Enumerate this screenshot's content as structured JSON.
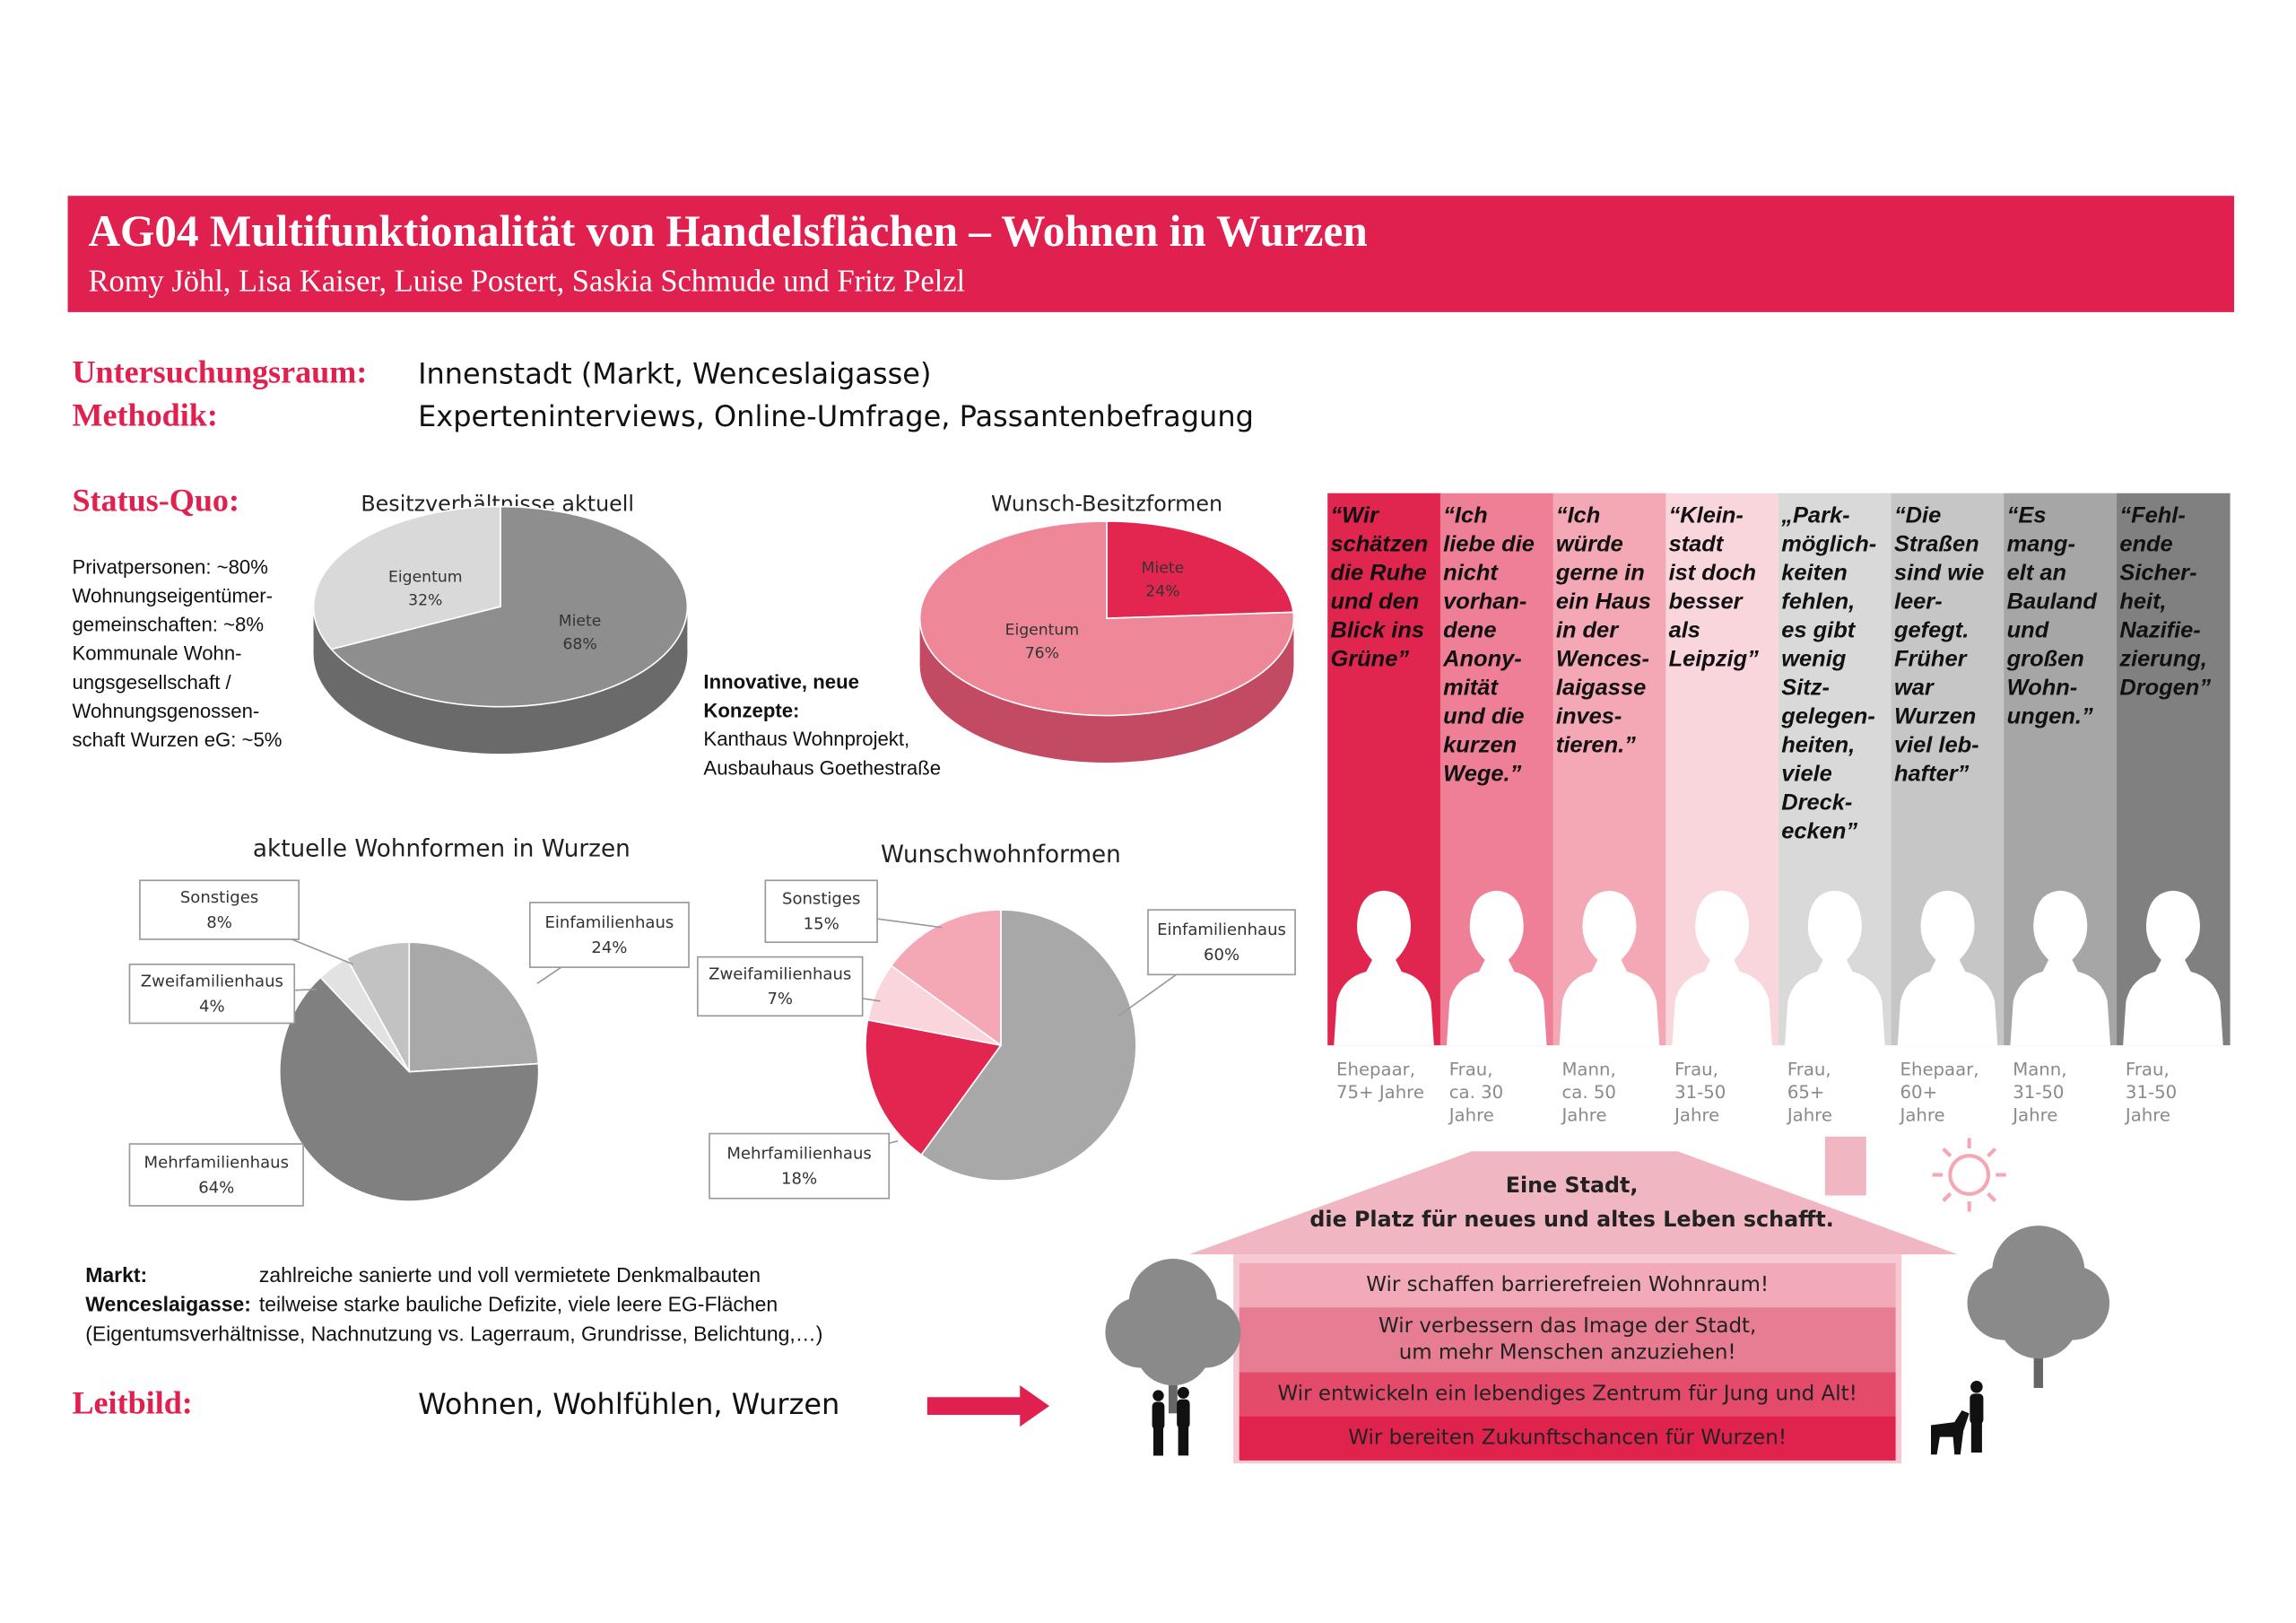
{
  "header": {
    "title": "AG04 Multifunktionalität von Handelsflächen – Wohnen in Wurzen",
    "authors": "Romy Jöhl, Lisa Kaiser, Luise Postert, Saskia Schmude und Fritz Pelzl"
  },
  "info": [
    {
      "label": "Untersuchungsraum:",
      "text": "Innenstadt (Markt, Wenceslaigasse)"
    },
    {
      "label": "Methodik:",
      "text": "Experteninterviews, Online-Umfrage, Passantenbefragung"
    }
  ],
  "status_quo": {
    "label": "Status-Quo:",
    "notes": [
      "Privatpersonen: ~80%",
      "Wohnungseigentümer-",
      "gemeinschaften: ~8%",
      "Kommunale Wohn-",
      "ungsgesellschaft /",
      "Wohnungsgenossen-",
      "schaft Wurzen eG: ~5%"
    ]
  },
  "innovative": {
    "title": [
      "Innovative, neue",
      "Konzepte:"
    ],
    "lines": [
      "Kanthaus Wohnprojekt,",
      "Ausbauhaus Goethestraße"
    ]
  },
  "charts": [
    {
      "type": "pie",
      "title": "Besitzverhältnisse aktuell",
      "categories": [
        "Miete",
        "Eigentum"
      ],
      "values": [
        68,
        32
      ],
      "value_labels": [
        "68%",
        "32%"
      ],
      "colors": [
        "#8e8e8e",
        "#d9d9d9"
      ]
    },
    {
      "type": "pie",
      "title": "Wunsch-Besitzformen",
      "categories": [
        "Miete",
        "Eigentum"
      ],
      "values": [
        24,
        76
      ],
      "value_labels": [
        "24%",
        "76%"
      ],
      "colors": [
        "#e3264f",
        "#ee8798"
      ]
    },
    {
      "type": "pie",
      "title": "aktuelle Wohnformen in Wurzen",
      "categories": [
        "Einfamilienhaus",
        "Mehrfamilienhaus",
        "Zweifamilienhaus",
        "Sonstiges"
      ],
      "values": [
        24,
        64,
        4,
        8
      ],
      "value_labels": [
        "24%",
        "64%",
        "4%",
        "8%"
      ],
      "colors": [
        "#a8a8a8",
        "#808080",
        "#e2e2e2",
        "#c2c2c2"
      ]
    },
    {
      "type": "pie",
      "title": "Wunschwohnformen",
      "categories": [
        "Einfamilienhaus",
        "Mehrfamilienhaus",
        "Zweifamilienhaus",
        "Sonstiges"
      ],
      "values": [
        60,
        18,
        7,
        15
      ],
      "value_labels": [
        "60%",
        "18%",
        "7%",
        "15%"
      ],
      "colors": [
        "#a8a8a8",
        "#e3264f",
        "#fad5dc",
        "#f4a7b5"
      ]
    }
  ],
  "quotes": [
    {
      "text": [
        "“Wir",
        "schätzen",
        "die Ruhe",
        "und den",
        "Blick ins",
        "Grüne”"
      ],
      "person": [
        "Ehepaar,",
        "75+ Jahre"
      ],
      "color": "#e0264f"
    },
    {
      "text": [
        "“Ich",
        "liebe die",
        "nicht",
        "vorhan-",
        "dene",
        "Anony-",
        "mität",
        "und die",
        "kurzen",
        "Wege.”"
      ],
      "person": [
        "Frau,",
        "ca. 30",
        "Jahre"
      ],
      "color": "#ef7f96"
    },
    {
      "text": [
        "“Ich",
        "würde",
        "gerne in",
        "ein Haus",
        "in der",
        "Wences-",
        "laigasse",
        "inves-",
        "tieren.”"
      ],
      "person": [
        "Mann,",
        "ca. 50",
        "Jahre"
      ],
      "color": "#f4a7b5"
    },
    {
      "text": [
        "“Klein-",
        "stadt",
        "ist doch",
        "besser",
        "als",
        "Leipzig”"
      ],
      "person": [
        "Frau,",
        "31-50",
        "Jahre"
      ],
      "color": "#f9d5dc"
    },
    {
      "text": [
        "„Park-",
        "möglich-",
        "keiten",
        "fehlen,",
        "es gibt",
        "wenig",
        "Sitz-",
        "gelegen-",
        "heiten,",
        "viele",
        "Dreck-",
        "ecken”"
      ],
      "person": [
        "Frau,",
        "65+",
        "Jahre"
      ],
      "color": "#d9d9d9"
    },
    {
      "text": [
        "“Die",
        "Straßen",
        "sind wie",
        "leer-",
        "gefegt.",
        "Früher",
        "war",
        "Wurzen",
        "viel leb-",
        "hafter”"
      ],
      "person": [
        "Ehepaar,",
        "60+",
        "Jahre"
      ],
      "color": "#c6c6c6"
    },
    {
      "text": [
        "“Es",
        "mang-",
        "elt an",
        "Bauland",
        "und",
        "großen",
        "Wohn-",
        "ungen.”"
      ],
      "person": [
        "Mann,",
        "31-50",
        "Jahre"
      ],
      "color": "#a6a6a6"
    },
    {
      "text": [
        "“Fehl-",
        "ende",
        "Sicher-",
        "heit,",
        "Nazifie-",
        "zierung,",
        "Drogen”"
      ],
      "person": [
        "Frau,",
        "31-50",
        "Jahre"
      ],
      "color": "#808080"
    }
  ],
  "site_notes": [
    {
      "label": "Markt:",
      "text": "zahlreiche sanierte und voll vermietete Denkmalbauten"
    },
    {
      "label": "Wenceslaigasse:",
      "text": "teilweise starke bauliche Defizite, viele leere EG-Flächen"
    }
  ],
  "site_note_extra": "(Eigentumsverhältnisse, Nachnutzung vs. Lagerraum, Grundrisse, Belichtung,…)",
  "leitbild": {
    "label": "Leitbild:",
    "text": "Wohnen, Wohlfühlen, Wurzen"
  },
  "house": {
    "title": [
      "Eine Stadt,",
      "die Platz für neues und altes Leben schafft."
    ],
    "goals": [
      [
        "Wir schaffen barrierefreien Wohnraum!"
      ],
      [
        "Wir verbessern das Image der Stadt,",
        "um mehr Menschen anzuziehen!"
      ],
      [
        "Wir entwickeln ein lebendiges Zentrum für Jung und Alt!"
      ],
      [
        "Wir bereiten Zukunftschancen für Wurzen!"
      ]
    ]
  }
}
